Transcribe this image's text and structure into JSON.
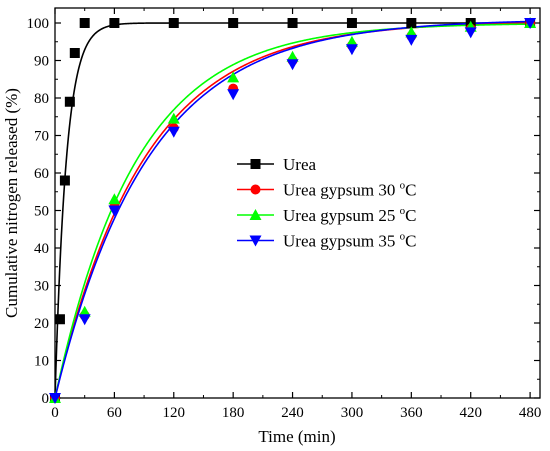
{
  "chart_data": {
    "type": "line",
    "title": "",
    "xlabel": "Time (min)",
    "ylabel": "Cumulative nitrogen released (%)",
    "xlim": [
      0,
      490
    ],
    "ylim": [
      0,
      104
    ],
    "xticks": [
      0,
      60,
      120,
      180,
      240,
      300,
      360,
      420,
      480
    ],
    "yticks": [
      0,
      10,
      20,
      30,
      40,
      50,
      60,
      70,
      80,
      90,
      100
    ],
    "grid": false,
    "legend": "center-right",
    "series": [
      {
        "name": "Urea",
        "color": "#000000",
        "marker": "square",
        "x": [
          0,
          5,
          10,
          15,
          20,
          30,
          60,
          120,
          180,
          240,
          300,
          360,
          420,
          480
        ],
        "y": [
          0,
          21,
          58,
          79,
          92,
          100,
          100,
          100,
          100,
          100,
          100,
          100,
          100,
          100
        ],
        "curve": {
          "model": "first-order",
          "a": 100,
          "k": 0.088
        }
      },
      {
        "name": "Urea gypsum 30 ºC",
        "name_base": "Urea gypsum 30 ",
        "name_sup": "o",
        "name_unit": "C",
        "color": "#ff0000",
        "marker": "circle",
        "x": [
          0,
          30,
          60,
          120,
          180,
          240,
          300,
          360,
          420,
          480
        ],
        "y": [
          0,
          22,
          51,
          72,
          82.5,
          90,
          94,
          96.5,
          98.5,
          100
        ],
        "curve": {
          "model": "first-order",
          "a": 100.5,
          "k": 0.0112
        }
      },
      {
        "name": "Urea gypsum 25 ºC",
        "name_base": "Urea gypsum 25 ",
        "name_sup": "o",
        "name_unit": "C",
        "color": "#00ff00",
        "marker": "triangle-up",
        "x": [
          0,
          30,
          60,
          120,
          180,
          240,
          300,
          360,
          420,
          480
        ],
        "y": [
          0,
          23,
          53,
          74.5,
          85.5,
          91,
          95,
          97.5,
          99,
          100
        ],
        "curve": {
          "model": "first-order",
          "a": 100,
          "k": 0.0122
        }
      },
      {
        "name": "Urea gypsum 35 ºC",
        "name_base": "Urea gypsum 35 ",
        "name_sup": "o",
        "name_unit": "C",
        "color": "#0000ff",
        "marker": "triangle-down",
        "x": [
          0,
          30,
          60,
          120,
          180,
          240,
          300,
          360,
          420,
          480
        ],
        "y": [
          0,
          21,
          50,
          71,
          81,
          89,
          93,
          95.5,
          97.5,
          100
        ],
        "curve": {
          "model": "first-order",
          "a": 101,
          "k": 0.0107
        }
      }
    ]
  }
}
